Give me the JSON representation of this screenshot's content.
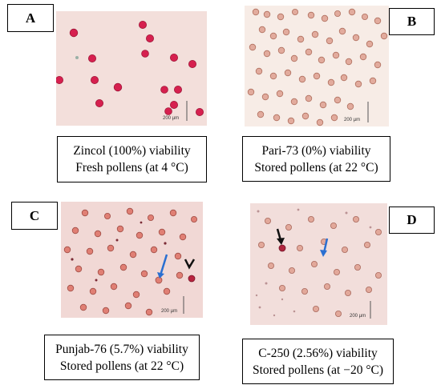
{
  "figure": {
    "panels": [
      {
        "id": "A",
        "letter": "A",
        "caption_line1": "Zincol (100%) viability",
        "caption_line2": "Fresh pollens (at 4 °C)",
        "background": "#f3dfdb",
        "cell_color": "#d6204f",
        "scale_label": "200 µm"
      },
      {
        "id": "B",
        "letter": "B",
        "caption_line1": "Pari-73 (0%) viability",
        "caption_line2": "Stored pollens (at 22 °C)",
        "background": "#f7ece6",
        "cell_color": "#d89a8c",
        "scale_label": "200 µm"
      },
      {
        "id": "C",
        "letter": "C",
        "caption_line1": "Punjab-76 (5.7%) viability",
        "caption_line2": "Stored pollens (at 22 °C)",
        "background": "#f1d8d5",
        "cell_color": "#d97c74",
        "scale_label": "200 µm",
        "arrows": [
          "blue-arrow",
          "black-arrow"
        ]
      },
      {
        "id": "D",
        "letter": "D",
        "caption_line1": "C-250 (2.56%) viability",
        "caption_line2": "Stored pollens (at −20 °C)",
        "background": "#f2dedb",
        "cell_color": "#d59a8e",
        "scale_label": "200 µm",
        "arrows": [
          "black-arrow",
          "blue-arrow"
        ]
      }
    ],
    "arrow_colors": {
      "blue": "#2a6fd1",
      "black": "#111111"
    }
  }
}
